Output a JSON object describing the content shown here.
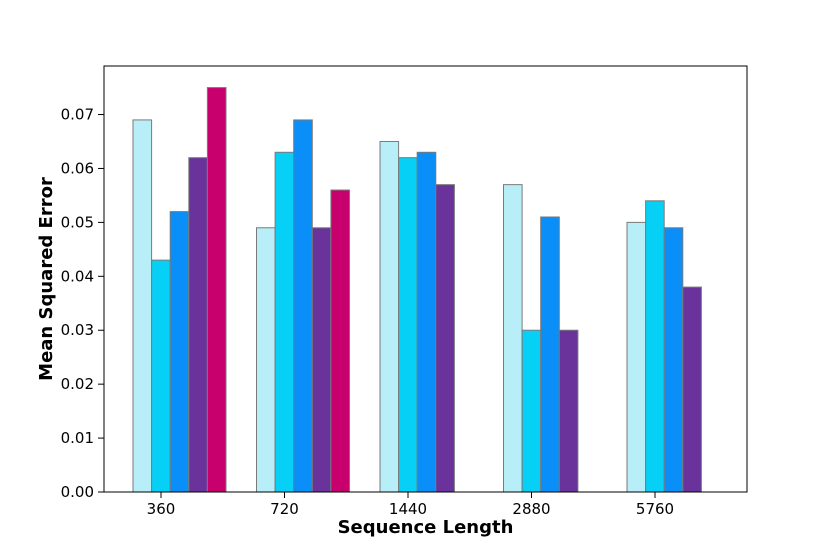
{
  "chart_data": {
    "type": "bar",
    "xlabel": "Sequence Length",
    "ylabel": "Mean Squared Error",
    "categories": [
      "360",
      "720",
      "1440",
      "2880",
      "5760"
    ],
    "ylim": [
      0,
      0.079
    ],
    "yticks": [
      "0.00",
      "0.01",
      "0.02",
      "0.03",
      "0.04",
      "0.05",
      "0.06",
      "0.07"
    ],
    "grid": false,
    "series": [
      {
        "color": "#b8eef8",
        "values": [
          0.069,
          0.049,
          0.065,
          0.057,
          0.05
        ]
      },
      {
        "color": "#06d0f5",
        "values": [
          0.043,
          0.063,
          0.062,
          0.03,
          0.054
        ]
      },
      {
        "color": "#0a8ef8",
        "values": [
          0.052,
          0.069,
          0.063,
          0.051,
          0.049
        ]
      },
      {
        "color": "#6a339c",
        "values": [
          0.062,
          0.049,
          0.057,
          0.03,
          0.038
        ]
      },
      {
        "color": "#c8006e",
        "values": [
          0.075,
          0.056,
          null,
          null,
          null
        ]
      }
    ]
  }
}
